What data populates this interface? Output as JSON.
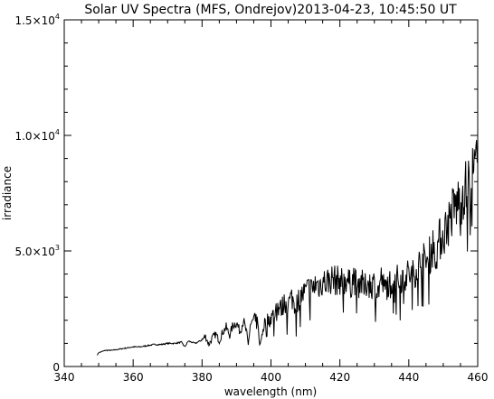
{
  "chart_data": {
    "type": "line",
    "title": "Solar UV Spectra (MFS, Ondrejov)2013-04-23, 10:45:50 UT",
    "xlabel": "wavelength (nm)",
    "ylabel": "irradiance",
    "xlim": [
      340,
      460
    ],
    "ylim": [
      0,
      15000
    ],
    "x_ticks": [
      {
        "value": 340,
        "label": "340"
      },
      {
        "value": 360,
        "label": "360"
      },
      {
        "value": 380,
        "label": "380"
      },
      {
        "value": 400,
        "label": "400"
      },
      {
        "value": 420,
        "label": "420"
      },
      {
        "value": 440,
        "label": "440"
      },
      {
        "value": 460,
        "label": "460"
      }
    ],
    "y_ticks": [
      {
        "value": 0,
        "label": "0"
      },
      {
        "value": 5000,
        "label": "5.0×10³",
        "mantissa": "5.0×10",
        "exp": "3"
      },
      {
        "value": 10000,
        "label": "1.0×10⁴",
        "mantissa": "1.0×10",
        "exp": "4"
      },
      {
        "value": 15000,
        "label": "1.5×10⁴",
        "mantissa": "1.5×10",
        "exp": "4"
      }
    ],
    "grid": false,
    "series": [
      {
        "color": "#000000",
        "x": [
          349.6,
          350.0,
          352.0,
          354.0,
          356.0,
          358.0,
          360.0,
          362.0,
          364.0,
          366.0,
          368.0,
          370.0,
          372.0,
          374.0,
          375.0,
          376.0,
          378.0,
          380.0,
          381.0,
          382.0,
          383.0,
          384.0,
          385.0,
          386.0,
          387.0,
          388.0,
          389.0,
          390.0,
          391.0,
          392.0,
          393.0,
          393.4,
          394.0,
          395.0,
          396.0,
          396.9,
          397.5,
          398.0,
          399.0,
          400.0,
          401.0,
          402.0,
          403.0,
          404.0,
          405.0,
          406.0,
          407.0,
          408.0,
          409.0,
          410.0,
          411.0,
          412.0,
          413.0,
          414.0,
          415.0,
          416.0,
          417.0,
          418.0,
          419.0,
          420.0,
          421.0,
          422.0,
          423.0,
          424.0,
          425.0,
          426.0,
          427.0,
          428.0,
          429.0,
          430.0,
          431.0,
          432.0,
          433.0,
          434.0,
          435.0,
          436.0,
          437.0,
          438.0,
          439.0,
          440.0,
          441.0,
          442.0,
          443.0,
          444.0,
          445.0,
          446.0,
          447.0,
          448.0,
          449.0,
          450.0,
          451.0,
          452.0,
          453.0,
          454.0,
          455.0,
          456.0,
          457.0,
          458.0,
          459.0,
          460.0
        ],
        "y": [
          500,
          600,
          700,
          700,
          750,
          800,
          850,
          850,
          900,
          950,
          950,
          1000,
          1000,
          1050,
          850,
          1100,
          1000,
          1150,
          1300,
          950,
          1250,
          1400,
          1100,
          1500,
          1700,
          1350,
          1800,
          1900,
          1500,
          2000,
          1400,
          900,
          1800,
          2000,
          1900,
          900,
          1500,
          1850,
          2000,
          2100,
          2300,
          2600,
          2500,
          2800,
          2700,
          3000,
          2650,
          2900,
          3100,
          3200,
          3400,
          3300,
          3600,
          3500,
          3700,
          3650,
          3750,
          3800,
          3700,
          3750,
          3600,
          3850,
          3500,
          3900,
          3400,
          3800,
          3300,
          3700,
          3500,
          3600,
          3200,
          3800,
          3300,
          3600,
          3700,
          3900,
          3700,
          3850,
          3950,
          4000,
          3900,
          4200,
          4400,
          4600,
          4500,
          4800,
          5200,
          5000,
          5500,
          5700,
          6100,
          6400,
          6800,
          7000,
          7300,
          7700,
          7600,
          8100,
          8400,
          8800
        ]
      }
    ]
  }
}
